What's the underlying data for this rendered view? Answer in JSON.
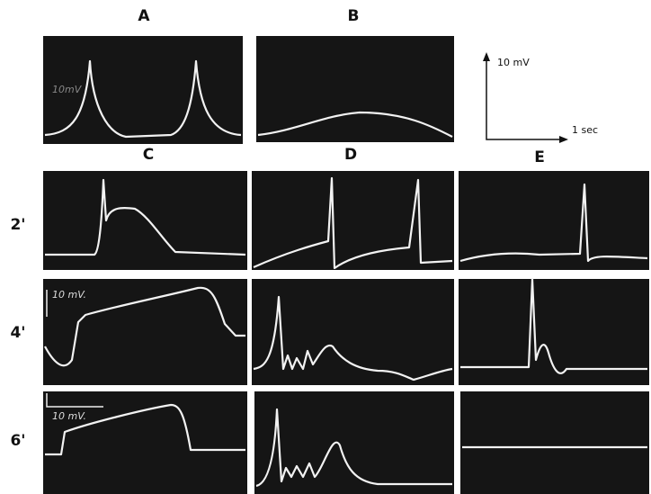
{
  "column_labels": [
    "A",
    "B",
    "C",
    "D",
    "E"
  ],
  "row_labels": [
    "2'",
    "4'",
    "6'"
  ],
  "scale_bar": {
    "vertical": "10 mV",
    "horizontal": "1 sec"
  },
  "trace_labels": [
    "10mV",
    "10 mV.",
    "10 mV."
  ]
}
